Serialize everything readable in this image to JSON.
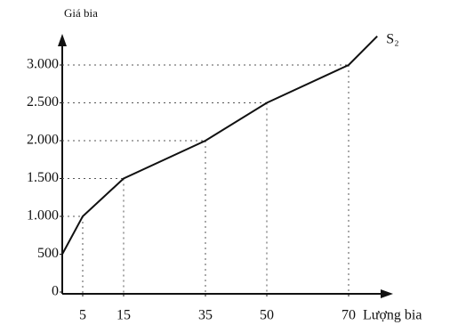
{
  "chart_data": {
    "type": "line",
    "x_label": "Lượng bia",
    "y_label": "Giá bia",
    "x": [
      0,
      5,
      15,
      35,
      50,
      70,
      77
    ],
    "series": [
      {
        "name": "S₂",
        "color": "#111111",
        "values": [
          500,
          1000,
          1500,
          2000,
          2500,
          3000,
          3380
        ]
      }
    ],
    "xlim": [
      0,
      80
    ],
    "xticks": [
      5,
      15,
      35,
      50,
      70
    ],
    "ylim": [
      0,
      3400
    ],
    "yticks": [
      0,
      500,
      {
        "value": 1000,
        "label": "1.000"
      },
      {
        "value": 1500,
        "label": "1.500"
      },
      {
        "value": 2000,
        "label": "2.000"
      },
      {
        "value": 2500,
        "label": "2.500"
      },
      {
        "value": 3000,
        "label": "3.000"
      }
    ]
  }
}
